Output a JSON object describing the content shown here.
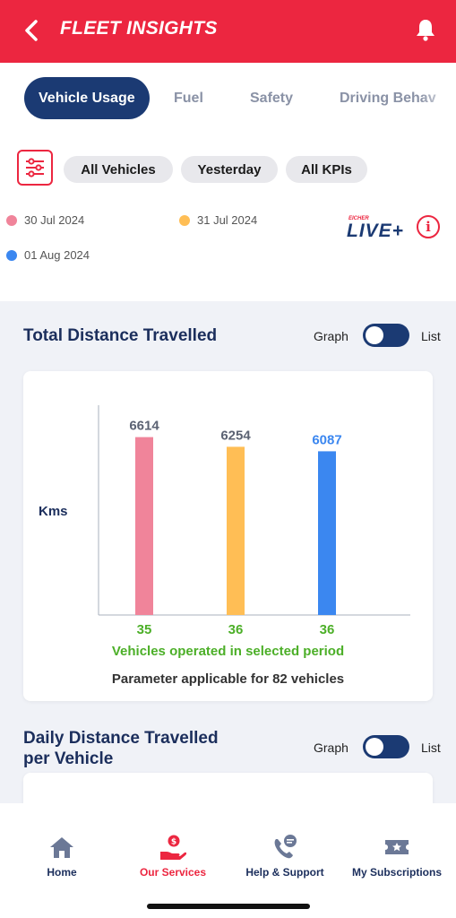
{
  "header": {
    "title": "FLEET INSIGHTS",
    "back_icon": "chevron-left-icon",
    "bell_icon": "bell-icon",
    "brand_color": "#ec2640"
  },
  "tabs": [
    {
      "label": "Vehicle Usage",
      "active": true
    },
    {
      "label": "Fuel",
      "active": false
    },
    {
      "label": "Safety",
      "active": false
    },
    {
      "label": "Driving Behav",
      "active": false
    }
  ],
  "filters": {
    "filter_icon": "sliders-icon",
    "chips": [
      "All Vehicles",
      "Yesterday",
      "All KPIs"
    ]
  },
  "legend": [
    {
      "label": "30 Jul 2024",
      "color": "#f0849a"
    },
    {
      "label": "31 Jul 2024",
      "color": "#ffbe55"
    },
    {
      "label": "01 Aug 2024",
      "color": "#3b87f0"
    }
  ],
  "brand_logo": {
    "top_text": "EICHER",
    "main_text": "LIVE+"
  },
  "info_icon": "info-icon",
  "sections": [
    {
      "title_line1": "Total Distance Travelled",
      "title_line2": "",
      "toggle_left": "Graph",
      "toggle_right": "List"
    },
    {
      "title_line1": "Daily Distance Travelled",
      "title_line2": "per Vehicle",
      "toggle_left": "Graph",
      "toggle_right": "List"
    }
  ],
  "chart_data": {
    "type": "bar",
    "categories": [
      "30 Jul 2024",
      "31 Jul 2024",
      "01 Aug 2024"
    ],
    "values": [
      6614,
      6254,
      6087
    ],
    "value_label_colors": [
      "#5b6273",
      "#5b6273",
      "#3b87f0"
    ],
    "bar_colors": [
      "#f0849a",
      "#ffbe55",
      "#3b87f0"
    ],
    "vehicles_operated": [
      35,
      36,
      36
    ],
    "ylabel": "Kms",
    "ylim": [
      0,
      7800
    ],
    "vehicles_note": "Vehicles operated in selected period",
    "applicable_note": "Parameter applicable for 82 vehicles"
  },
  "bottom_nav": [
    {
      "label": "Home",
      "icon": "home-icon",
      "active": false
    },
    {
      "label": "Our Services",
      "icon": "services-icon",
      "active": true
    },
    {
      "label": "Help & Support",
      "icon": "support-icon",
      "active": false
    },
    {
      "label": "My Subscriptions",
      "icon": "subscriptions-icon",
      "active": false
    }
  ]
}
